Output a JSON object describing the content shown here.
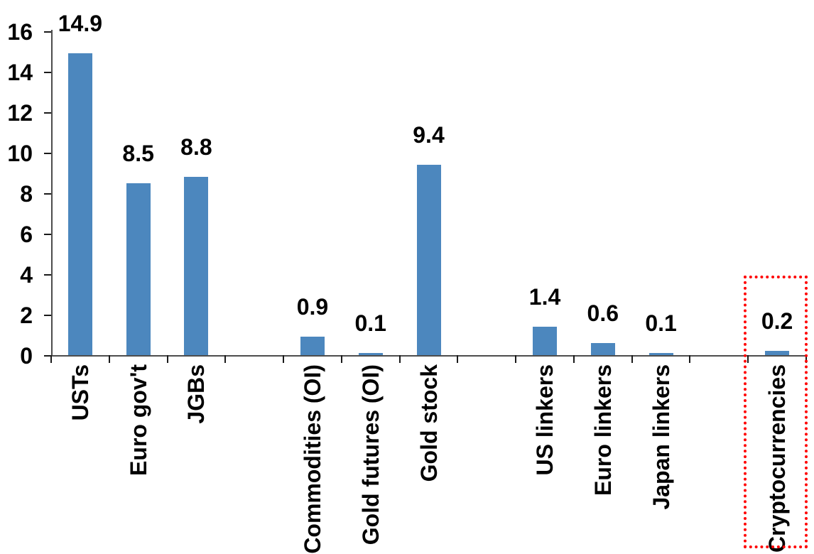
{
  "chart_data": {
    "type": "bar",
    "title": "",
    "categories": [
      "USTs",
      "Euro gov't",
      "JGBs",
      "Commodities (OI)",
      "Gold futures (OI)",
      "Gold stock",
      "US linkers",
      "Euro linkers",
      "Japan linkers",
      "Cryptocurrencies"
    ],
    "values": [
      14.9,
      8.5,
      8.8,
      0.9,
      0.1,
      9.4,
      1.4,
      0.6,
      0.1,
      0.2
    ],
    "data_labels": [
      "14.9",
      "8.5",
      "8.8",
      "0.9",
      "0.1",
      "9.4",
      "1.4",
      "0.6",
      "0.1",
      "0.2"
    ],
    "groups": [
      [
        0,
        1,
        2
      ],
      [
        3,
        4,
        5
      ],
      [
        6,
        7,
        8
      ],
      [
        9
      ]
    ],
    "xlabel": "",
    "ylabel": "",
    "ylim": [
      0,
      16
    ],
    "yticks": [
      "0",
      "2",
      "4",
      "6",
      "8",
      "10",
      "12",
      "14",
      "16"
    ],
    "grid": false,
    "legend": "none",
    "label_rotation": "90-degrees-ccw",
    "colors": {
      "bar": "#4c87be",
      "axis": "#4d4d4d",
      "tick": "#1a1a1a",
      "text": "#000000",
      "highlight": "#ff0000"
    },
    "highlight": {
      "category": "Cryptocurrencies",
      "shape": "red-dotted-box"
    }
  }
}
